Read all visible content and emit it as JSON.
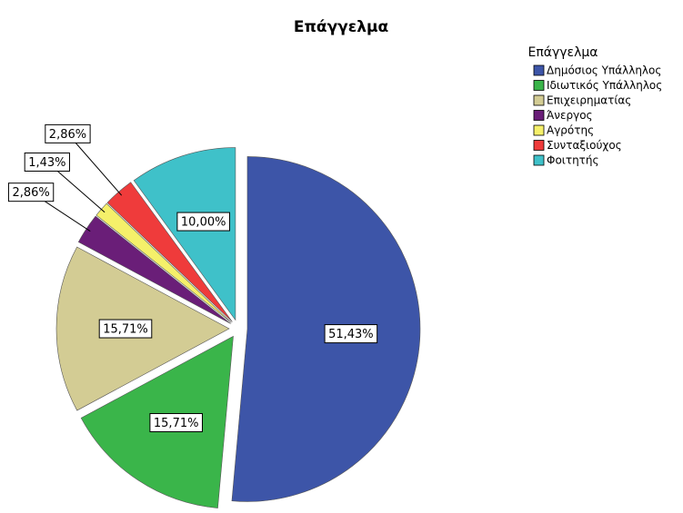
{
  "chart_data": {
    "type": "pie",
    "title": "Επάγγελμα",
    "legend_title": "Επάγγελμα",
    "categories": [
      "Δημόσιος Υπάλληλος",
      "Ιδιωτικός Υπάλληλος",
      "Επιχειρηματίας",
      "Άνεργος",
      "Αγρότης",
      "Συνταξιούχος",
      "Φοιτητής"
    ],
    "values": [
      51.43,
      15.71,
      15.71,
      2.86,
      1.43,
      2.86,
      10.0
    ],
    "value_labels": [
      "51,43%",
      "15,71%",
      "15,71%",
      "2,86%",
      "1,43%",
      "2,86%",
      "10,00%"
    ],
    "colors": [
      "#3d55a8",
      "#3ab54a",
      "#d3cc94",
      "#6a1e78",
      "#f5f06a",
      "#ef3b3b",
      "#3fc1c9"
    ],
    "legend": "top-right"
  }
}
